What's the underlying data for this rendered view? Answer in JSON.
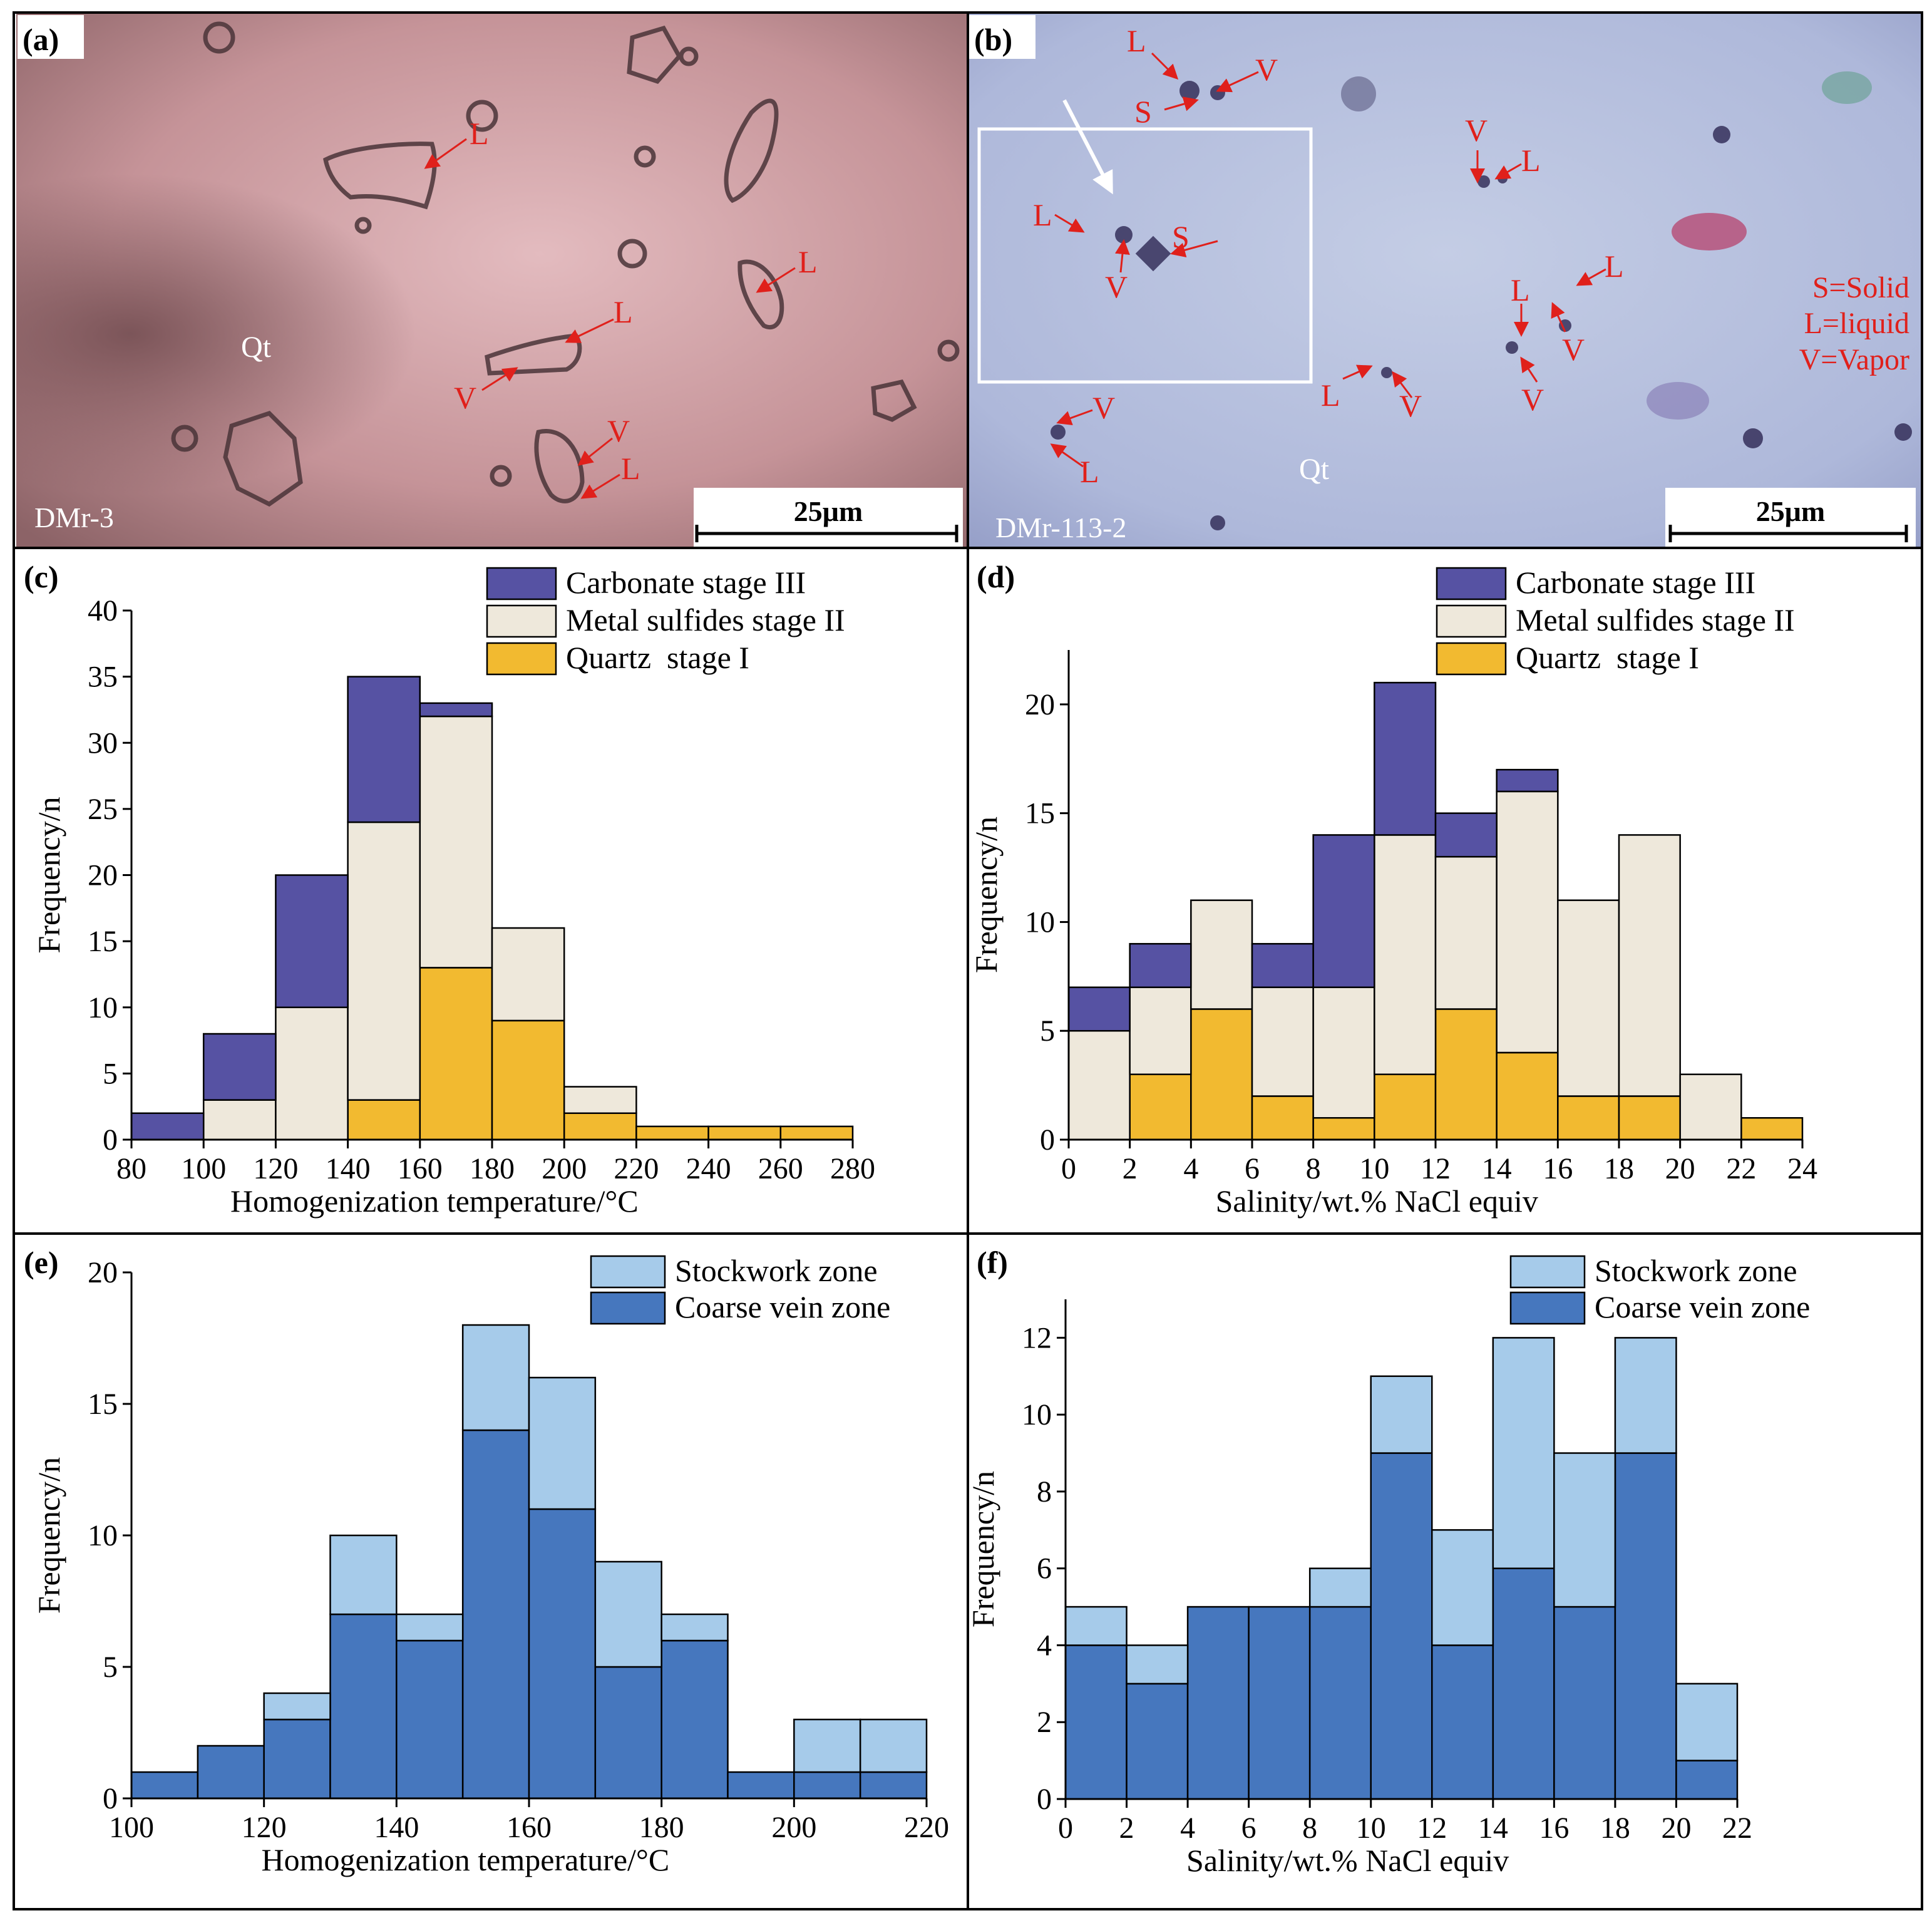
{
  "colors": {
    "carbonate": "#5652A3",
    "sulfide": "#EEE8DB",
    "quartz": "#F2BA30",
    "stockwork": "#A6CBEA",
    "coarse": "#4677BE",
    "annotation": "#E0201B"
  },
  "photos": {
    "a": {
      "label": "(a)",
      "sample": "DMr-3",
      "mineral": "Qt",
      "scale": "25μm",
      "annotations": [
        "L",
        "L",
        "L",
        "V",
        "V",
        "L"
      ]
    },
    "b": {
      "label": "(b)",
      "sample": "DMr-113-2",
      "mineral": "Qt",
      "scale": "25μm",
      "annotations": [
        "L",
        "S",
        "V",
        "L",
        "S",
        "V",
        "V",
        "L",
        "L",
        "V",
        "L",
        "V",
        "L",
        "V",
        "V",
        "L"
      ],
      "legend": [
        "S=Solid",
        "L=liquid",
        "V=Vapor"
      ]
    }
  },
  "chart_data": [
    {
      "id": "c",
      "label": "(c)",
      "type": "bar",
      "stacked": true,
      "bins": [
        [
          80,
          100
        ],
        [
          100,
          120
        ],
        [
          120,
          140
        ],
        [
          140,
          160
        ],
        [
          160,
          180
        ],
        [
          180,
          200
        ],
        [
          200,
          220
        ],
        [
          220,
          240
        ],
        [
          240,
          260
        ],
        [
          260,
          280
        ]
      ],
      "series": [
        {
          "name": "Quartz  stage I",
          "key": "quartz",
          "values": [
            0,
            0,
            0,
            3,
            13,
            9,
            2,
            1,
            1,
            1
          ]
        },
        {
          "name": "Metal sulfides stage II",
          "key": "sulfide",
          "values": [
            0,
            3,
            10,
            21,
            19,
            7,
            2,
            0,
            0,
            0
          ]
        },
        {
          "name": "Carbonate stage III",
          "key": "carbonate",
          "values": [
            2,
            5,
            10,
            11,
            1,
            0,
            0,
            0,
            0,
            0
          ]
        }
      ],
      "legend_order": [
        "carbonate",
        "sulfide",
        "quartz"
      ],
      "xlabel": "Homogenization temperature/°C",
      "ylabel": "Frequency/n",
      "xlim": [
        80,
        280
      ],
      "ylim": [
        0,
        40
      ],
      "xticks": [
        80,
        100,
        120,
        140,
        160,
        180,
        200,
        220,
        240,
        260,
        280
      ],
      "yticks": [
        0,
        5,
        10,
        15,
        20,
        25,
        30,
        35,
        40
      ]
    },
    {
      "id": "d",
      "label": "(d)",
      "type": "bar",
      "stacked": true,
      "bins": [
        [
          0,
          2
        ],
        [
          2,
          4
        ],
        [
          4,
          6
        ],
        [
          6,
          8
        ],
        [
          8,
          10
        ],
        [
          10,
          12
        ],
        [
          12,
          14
        ],
        [
          14,
          16
        ],
        [
          16,
          18
        ],
        [
          18,
          20
        ],
        [
          20,
          22
        ],
        [
          22,
          24
        ]
      ],
      "series": [
        {
          "name": "Quartz  stage I",
          "key": "quartz",
          "values": [
            0,
            3,
            6,
            2,
            1,
            3,
            6,
            4,
            2,
            2,
            0,
            1
          ]
        },
        {
          "name": "Metal sulfides stage II",
          "key": "sulfide",
          "values": [
            5,
            4,
            5,
            5,
            6,
            11,
            7,
            12,
            9,
            12,
            3,
            0
          ]
        },
        {
          "name": "Carbonate stage III",
          "key": "carbonate",
          "values": [
            2,
            2,
            0,
            2,
            7,
            7,
            2,
            1,
            0,
            0,
            0,
            0
          ]
        }
      ],
      "legend_order": [
        "carbonate",
        "sulfide",
        "quartz"
      ],
      "xlabel": "Salinity/wt.% NaCl equiv",
      "ylabel": "Frequency/n",
      "xlim": [
        0,
        24
      ],
      "ylim": [
        0,
        22.5
      ],
      "xticks": [
        0,
        2,
        4,
        6,
        8,
        10,
        12,
        14,
        16,
        18,
        20,
        22,
        24
      ],
      "yticks": [
        0,
        5,
        10,
        15,
        20
      ]
    },
    {
      "id": "e",
      "label": "(e)",
      "type": "bar",
      "stacked": true,
      "bins": [
        [
          100,
          110
        ],
        [
          110,
          120
        ],
        [
          120,
          130
        ],
        [
          130,
          140
        ],
        [
          140,
          150
        ],
        [
          150,
          160
        ],
        [
          160,
          170
        ],
        [
          170,
          180
        ],
        [
          180,
          190
        ],
        [
          190,
          200
        ],
        [
          200,
          210
        ],
        [
          210,
          220
        ]
      ],
      "series": [
        {
          "name": "Coarse vein zone",
          "key": "coarse",
          "values": [
            1,
            2,
            3,
            7,
            6,
            14,
            11,
            5,
            6,
            1,
            1,
            1
          ]
        },
        {
          "name": "Stockwork zone",
          "key": "stockwork",
          "values": [
            0,
            0,
            1,
            3,
            1,
            4,
            5,
            4,
            1,
            0,
            2,
            2
          ]
        }
      ],
      "legend_order": [
        "stockwork",
        "coarse"
      ],
      "xlabel": "Homogenization temperature/°C",
      "ylabel": "Frequency/n",
      "xlim": [
        100,
        220
      ],
      "ylim": [
        0,
        20
      ],
      "xticks": [
        100,
        120,
        140,
        160,
        180,
        200,
        220
      ],
      "yticks": [
        0,
        5,
        10,
        15,
        20
      ]
    },
    {
      "id": "f",
      "label": "(f)",
      "type": "bar",
      "stacked": true,
      "bins": [
        [
          0,
          2
        ],
        [
          2,
          4
        ],
        [
          4,
          6
        ],
        [
          6,
          8
        ],
        [
          8,
          10
        ],
        [
          10,
          12
        ],
        [
          12,
          14
        ],
        [
          14,
          16
        ],
        [
          16,
          18
        ],
        [
          18,
          20
        ],
        [
          20,
          22
        ]
      ],
      "series": [
        {
          "name": "Coarse vein zone",
          "key": "coarse",
          "values": [
            4,
            3,
            5,
            5,
            5,
            9,
            4,
            6,
            5,
            9,
            1
          ]
        },
        {
          "name": "Stockwork zone",
          "key": "stockwork",
          "values": [
            1,
            1,
            0,
            0,
            1,
            2,
            3,
            6,
            4,
            3,
            2
          ]
        }
      ],
      "legend_order": [
        "stockwork",
        "coarse"
      ],
      "xlabel": "Salinity/wt.% NaCl equiv",
      "ylabel": "Frequency/n",
      "xlim": [
        0,
        22
      ],
      "ylim": [
        0,
        13
      ],
      "xticks": [
        0,
        2,
        4,
        6,
        8,
        10,
        12,
        14,
        16,
        18,
        20,
        22
      ],
      "yticks": [
        0,
        2,
        4,
        6,
        8,
        10,
        12
      ]
    }
  ]
}
